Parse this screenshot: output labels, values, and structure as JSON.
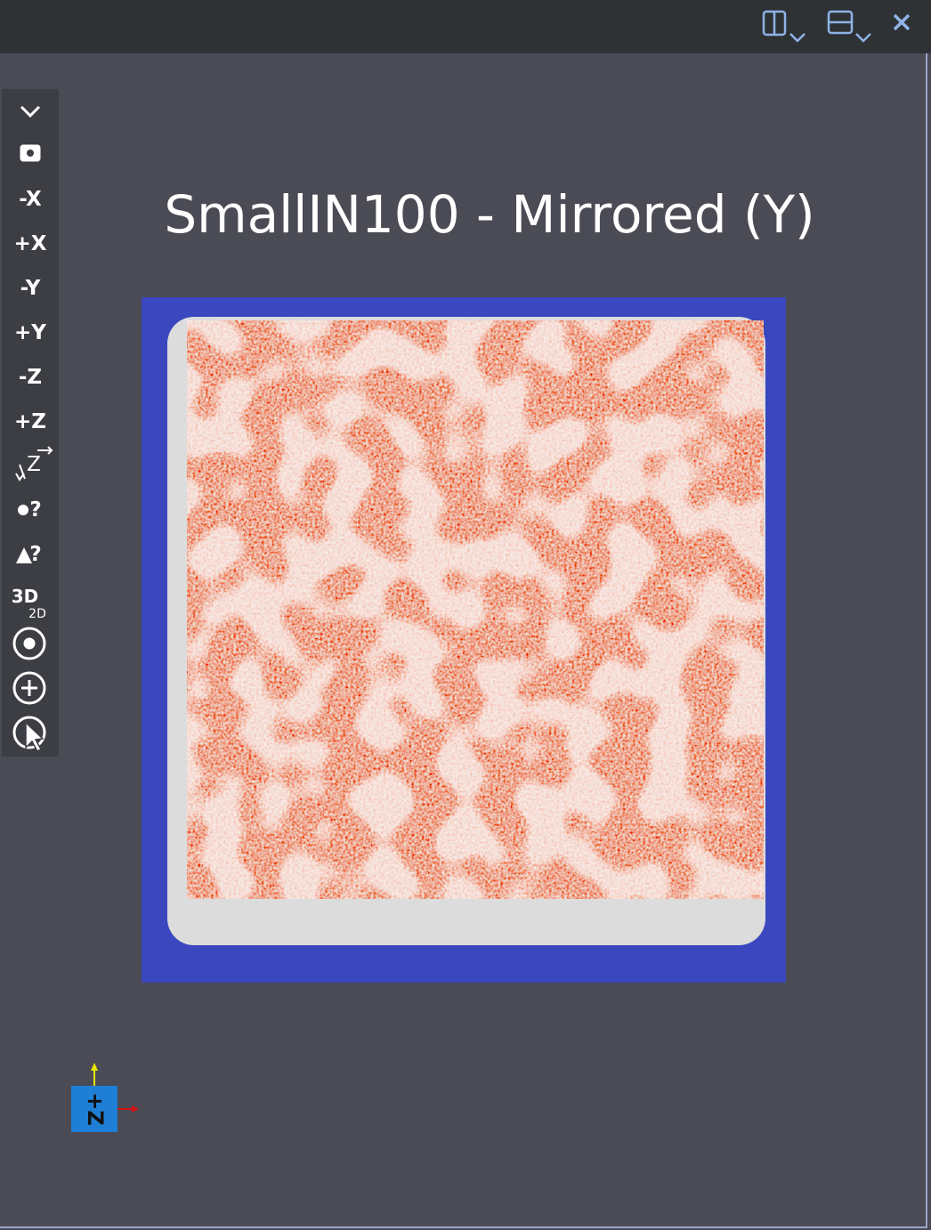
{
  "header": {
    "title": "SmallIN100 - Mirrored (Y)"
  },
  "toolbar": {
    "buttons": [
      "-X",
      "+X",
      "-Y",
      "+Y",
      "-Z",
      "+Z"
    ],
    "z_label": "Z",
    "point_pick": "?",
    "cell_pick": "?",
    "mode": [
      "3D",
      "2D"
    ]
  },
  "orientation_axes": {
    "label": "+Z"
  }
}
